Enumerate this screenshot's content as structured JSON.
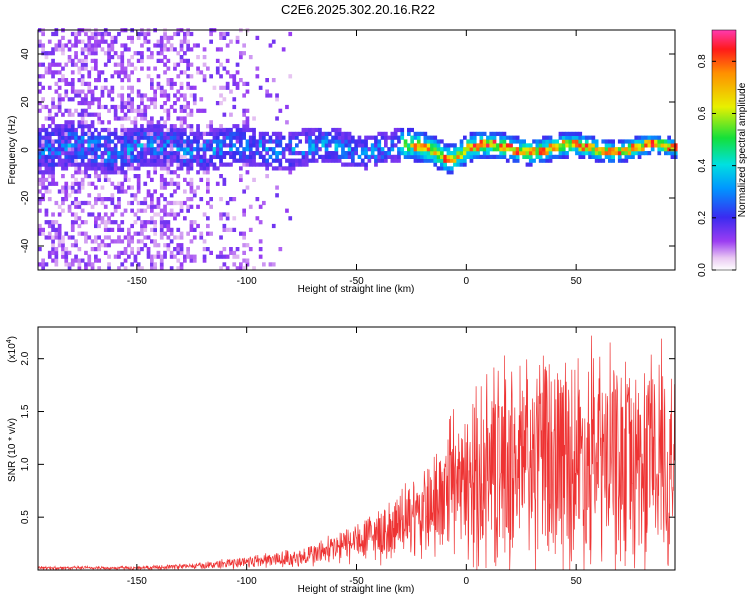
{
  "title": "C2E6.2025.302.20.16.R22",
  "chart_data": [
    {
      "type": "heatmap",
      "name": "spectrogram",
      "xlabel": "Height of straight line (km)",
      "ylabel": "Frequency (Hz)",
      "xlim": [
        -195,
        95
      ],
      "ylim": [
        -50,
        50
      ],
      "x_ticks": [
        -150,
        -100,
        -50,
        0,
        50
      ],
      "y_ticks": [
        -40,
        -20,
        0,
        20,
        40
      ],
      "colorbar": {
        "label": "Normalized spectral amplitude",
        "range": [
          0,
          0.92
        ],
        "ticks": [
          "0.0",
          "0.2",
          "0.4",
          "0.6",
          "0.8"
        ],
        "tick_values": [
          0.0,
          0.2,
          0.4,
          0.6,
          0.8
        ],
        "colormap": "rainbow (white→magenta→violet→blue→cyan→green→yellow→orange→red)"
      },
      "features": {
        "noise_region_x": [
          -195,
          -80
        ],
        "signal_band_center_hz": 0,
        "signal_band_halfwidth_hz": [
          10,
          4
        ],
        "strong_signal_x": [
          -25,
          95
        ]
      }
    },
    {
      "type": "line",
      "name": "snr",
      "xlabel": "Height of straight line (km)",
      "ylabel": "SNR (10 * v/v)",
      "scale_label": "(x10",
      "scale_exp": "4",
      "xlim": [
        -195,
        95
      ],
      "ylim": [
        0,
        2.3
      ],
      "x_ticks": [
        -150,
        -100,
        -50,
        0,
        50
      ],
      "y_ticks": [
        "0.5",
        "1.0",
        "1.5",
        "2.0"
      ],
      "y_tick_values": [
        0.5,
        1.0,
        1.5,
        2.0
      ],
      "color": "#ee3333",
      "envelope_points": [
        {
          "x": -195,
          "y": 0.02
        },
        {
          "x": -150,
          "y": 0.02
        },
        {
          "x": -120,
          "y": 0.04
        },
        {
          "x": -100,
          "y": 0.08
        },
        {
          "x": -75,
          "y": 0.12
        },
        {
          "x": -60,
          "y": 0.2
        },
        {
          "x": -45,
          "y": 0.3
        },
        {
          "x": -30,
          "y": 0.42
        },
        {
          "x": -20,
          "y": 0.5
        },
        {
          "x": -10,
          "y": 0.65
        },
        {
          "x": 0,
          "y": 0.8
        },
        {
          "x": 10,
          "y": 0.9
        },
        {
          "x": 25,
          "y": 1.0
        },
        {
          "x": 50,
          "y": 1.05
        },
        {
          "x": 75,
          "y": 1.0
        },
        {
          "x": 95,
          "y": 1.0
        }
      ]
    }
  ]
}
